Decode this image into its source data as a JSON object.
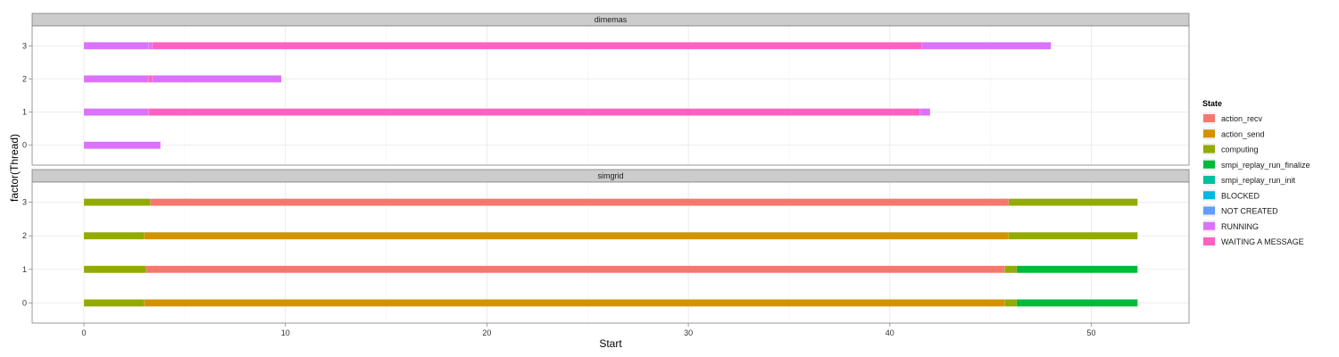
{
  "chart_data": {
    "type": "gantt",
    "xlabel": "Start",
    "ylabel": "factor(Thread)",
    "xlim": [
      -2.6,
      55
    ],
    "x_ticks": [
      0,
      10,
      20,
      30,
      40,
      50
    ],
    "y_categories": [
      "0",
      "1",
      "2",
      "3"
    ],
    "grid": true,
    "legend_placement": "right",
    "legend": {
      "title": "State",
      "entries": [
        {
          "label": "action_recv",
          "color": "#F8766D"
        },
        {
          "label": "action_send",
          "color": "#D39200"
        },
        {
          "label": "computing",
          "color": "#93AA00"
        },
        {
          "label": "smpi_replay_run_finalize",
          "color": "#00BA38"
        },
        {
          "label": "smpi_replay_run_init",
          "color": "#00C19F"
        },
        {
          "label": "BLOCKED",
          "color": "#00B9E3"
        },
        {
          "label": "NOT CREATED",
          "color": "#619CFF"
        },
        {
          "label": "RUNNING",
          "color": "#DB72FB"
        },
        {
          "label": "WAITING A MESSAGE",
          "color": "#FF61C3"
        }
      ]
    },
    "panels": [
      {
        "label": "dimemas",
        "segments": [
          {
            "thread": "3",
            "start": 0,
            "end": 3.2,
            "state": "RUNNING"
          },
          {
            "thread": "3",
            "start": 3.2,
            "end": 3.4,
            "state": "RUNNING"
          },
          {
            "thread": "3",
            "start": 3.4,
            "end": 41.6,
            "state": "WAITING A MESSAGE"
          },
          {
            "thread": "3",
            "start": 41.6,
            "end": 48.0,
            "state": "RUNNING"
          },
          {
            "thread": "2",
            "start": 0,
            "end": 3.2,
            "state": "RUNNING"
          },
          {
            "thread": "2",
            "start": 3.2,
            "end": 3.4,
            "state": "WAITING A MESSAGE"
          },
          {
            "thread": "2",
            "start": 3.4,
            "end": 9.8,
            "state": "RUNNING"
          },
          {
            "thread": "1",
            "start": 0,
            "end": 3.2,
            "state": "RUNNING"
          },
          {
            "thread": "1",
            "start": 3.2,
            "end": 41.5,
            "state": "WAITING A MESSAGE"
          },
          {
            "thread": "1",
            "start": 41.5,
            "end": 42.0,
            "state": "RUNNING"
          },
          {
            "thread": "0",
            "start": 0,
            "end": 3.8,
            "state": "RUNNING"
          }
        ]
      },
      {
        "label": "simgrid",
        "segments": [
          {
            "thread": "3",
            "start": 0,
            "end": 3.3,
            "state": "computing"
          },
          {
            "thread": "3",
            "start": 3.3,
            "end": 45.9,
            "state": "action_recv"
          },
          {
            "thread": "3",
            "start": 45.9,
            "end": 52.3,
            "state": "computing"
          },
          {
            "thread": "2",
            "start": 0,
            "end": 3.0,
            "state": "computing"
          },
          {
            "thread": "2",
            "start": 3.0,
            "end": 45.9,
            "state": "action_send"
          },
          {
            "thread": "2",
            "start": 45.9,
            "end": 52.3,
            "state": "computing"
          },
          {
            "thread": "1",
            "start": 0,
            "end": 3.1,
            "state": "computing"
          },
          {
            "thread": "1",
            "start": 3.1,
            "end": 45.7,
            "state": "action_recv"
          },
          {
            "thread": "1",
            "start": 45.7,
            "end": 46.3,
            "state": "computing"
          },
          {
            "thread": "1",
            "start": 46.3,
            "end": 52.3,
            "state": "smpi_replay_run_finalize"
          },
          {
            "thread": "0",
            "start": 0,
            "end": 3.0,
            "state": "computing"
          },
          {
            "thread": "0",
            "start": 3.0,
            "end": 45.7,
            "state": "action_send"
          },
          {
            "thread": "0",
            "start": 45.7,
            "end": 46.3,
            "state": "computing"
          },
          {
            "thread": "0",
            "start": 46.3,
            "end": 52.3,
            "state": "smpi_replay_run_finalize"
          }
        ]
      }
    ]
  }
}
